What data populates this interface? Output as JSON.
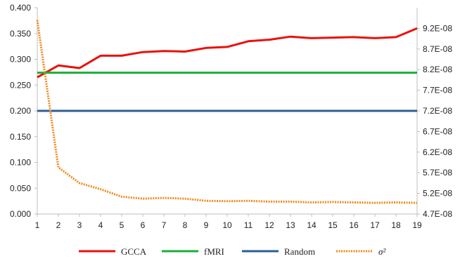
{
  "chart_data": {
    "type": "line",
    "title": "",
    "xlabel": "",
    "ylabel": "",
    "y2label": "",
    "x": [
      1,
      2,
      3,
      4,
      5,
      6,
      7,
      8,
      9,
      10,
      11,
      12,
      13,
      14,
      15,
      16,
      17,
      18,
      19
    ],
    "ylim": [
      0,
      0.4
    ],
    "y2lim": [
      4.7e-08,
      9.7e-08
    ],
    "y_ticks": [
      "0.000",
      "0.050",
      "0.100",
      "0.150",
      "0.200",
      "0.250",
      "0.300",
      "0.350",
      "0.400"
    ],
    "y2_ticks": [
      "4.7E-08",
      "5.2E-08",
      "5.7E-08",
      "6.2E-08",
      "6.7E-08",
      "7.2E-08",
      "7.7E-08",
      "8.2E-08",
      "8.7E-08",
      "9.2E-08"
    ],
    "y2_tick_values": [
      4.7e-08,
      5.2e-08,
      5.7e-08,
      6.2e-08,
      6.7e-08,
      7.2e-08,
      7.7e-08,
      8.2e-08,
      8.7e-08,
      9.2e-08
    ],
    "grid": false,
    "legend_position": "bottom",
    "series": [
      {
        "name": "GCCA",
        "axis": "left",
        "color": "#e8120c",
        "style": "solid",
        "values": [
          0.265,
          0.288,
          0.283,
          0.307,
          0.307,
          0.314,
          0.316,
          0.315,
          0.322,
          0.324,
          0.335,
          0.338,
          0.344,
          0.341,
          0.342,
          0.343,
          0.341,
          0.343,
          0.36
        ]
      },
      {
        "name": "fMRI",
        "axis": "left",
        "color": "#1aae3a",
        "style": "solid",
        "values": [
          0.274,
          0.274,
          0.274,
          0.274,
          0.274,
          0.274,
          0.274,
          0.274,
          0.274,
          0.274,
          0.274,
          0.274,
          0.274,
          0.274,
          0.274,
          0.274,
          0.274,
          0.274,
          0.274
        ]
      },
      {
        "name": "Random",
        "axis": "left",
        "color": "#2c5f91",
        "style": "solid",
        "values": [
          0.2,
          0.2,
          0.2,
          0.2,
          0.2,
          0.2,
          0.2,
          0.2,
          0.2,
          0.2,
          0.2,
          0.2,
          0.2,
          0.2,
          0.2,
          0.2,
          0.2,
          0.2,
          0.2
        ]
      },
      {
        "name": "σ²",
        "axis": "right",
        "color": "#f08a1e",
        "style": "dotted",
        "values": [
          9.4e-08,
          5.83e-08,
          5.45e-08,
          5.3e-08,
          5.12e-08,
          5.07e-08,
          5.09e-08,
          5.07e-08,
          5.02e-08,
          5.01e-08,
          5.02e-08,
          5e-08,
          5e-08,
          4.98e-08,
          4.99e-08,
          4.98e-08,
          4.97e-08,
          4.98e-08,
          4.97e-08
        ]
      }
    ]
  }
}
